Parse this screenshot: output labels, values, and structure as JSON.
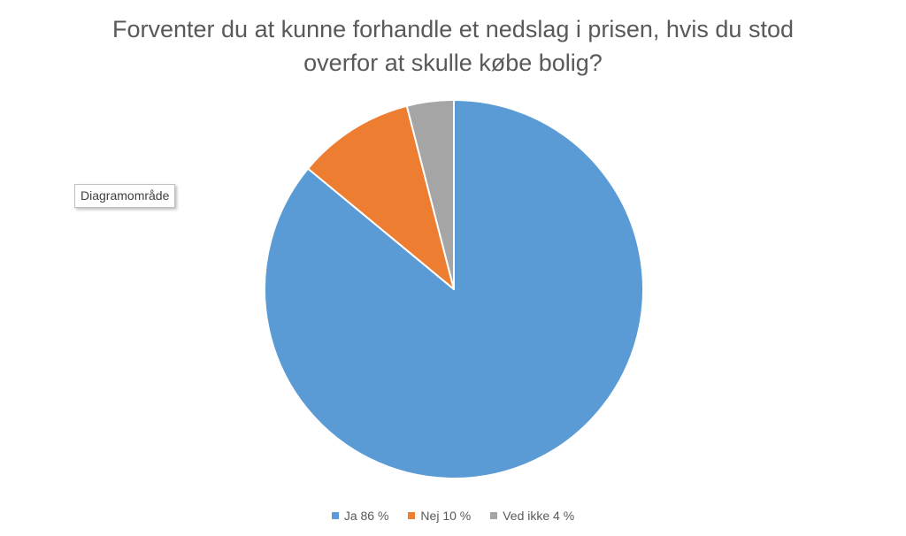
{
  "chart_data": {
    "type": "pie",
    "title_lines": [
      "Forventer du at kunne forhandle et nedslag i prisen, hvis du stod",
      "overfor at skulle købe bolig?"
    ],
    "slices": [
      {
        "label": "Ja",
        "value": 86,
        "legend": "Ja 86 %",
        "color": "#5B9BD5"
      },
      {
        "label": "Nej",
        "value": 10,
        "legend": "Nej 10 %",
        "color": "#ED7D31"
      },
      {
        "label": "Ved ikke",
        "value": 4,
        "legend": "Ved ikke 4 %",
        "color": "#A5A5A5"
      }
    ],
    "start_angle_deg": 0,
    "direction": "clockwise",
    "legend_position": "bottom"
  },
  "tooltip": {
    "text": "Diagramområde"
  }
}
